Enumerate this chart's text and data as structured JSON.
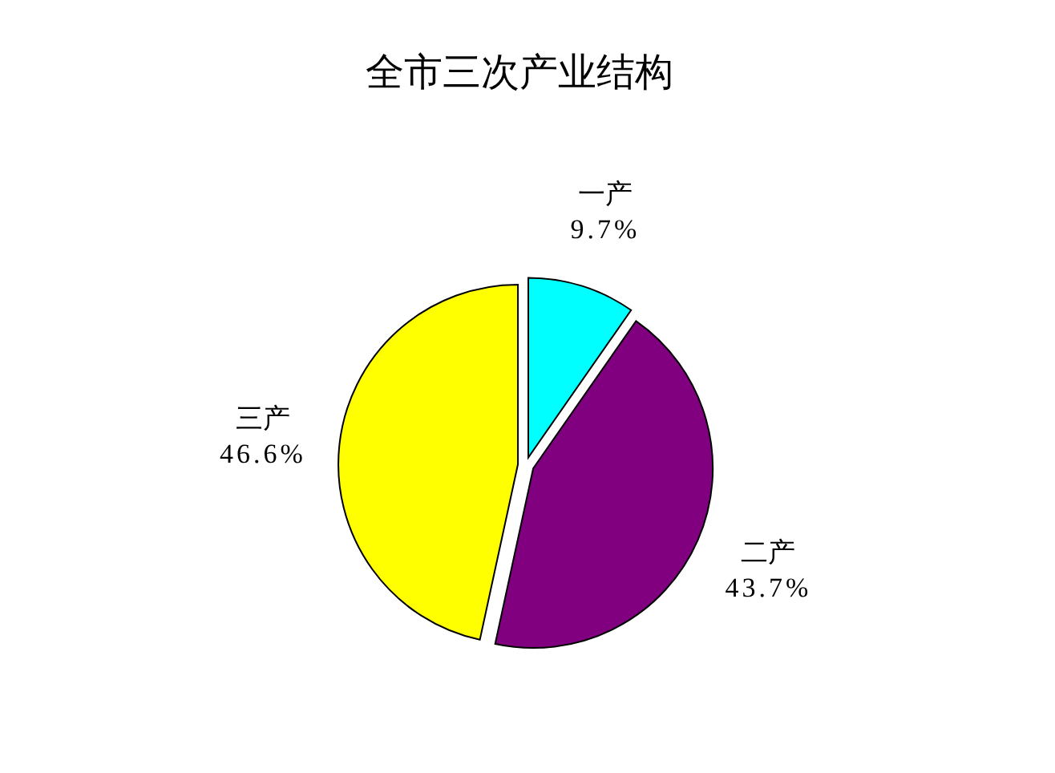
{
  "chart_data": {
    "type": "pie",
    "title": "全市三次产业结构",
    "categories": [
      "一产",
      "二产",
      "三产"
    ],
    "values": [
      9.7,
      43.7,
      46.6
    ],
    "value_labels": [
      "9.7%",
      "43.7%",
      "46.6%"
    ],
    "colors": [
      "#00ffff",
      "#800080",
      "#ffff00"
    ]
  }
}
